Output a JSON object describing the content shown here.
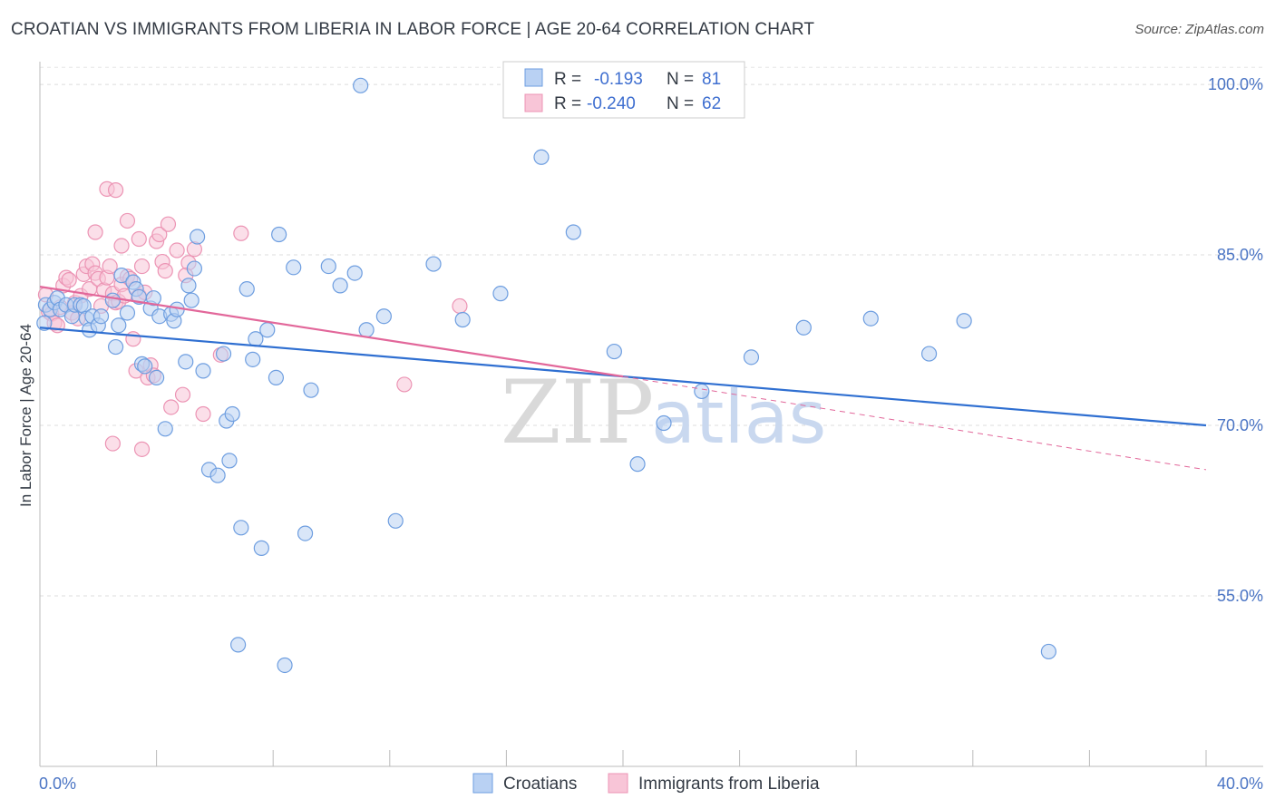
{
  "header": {
    "title": "CROATIAN VS IMMIGRANTS FROM LIBERIA IN LABOR FORCE | AGE 20-64 CORRELATION CHART",
    "source": "Source: ZipAtlas.com"
  },
  "watermark": {
    "zip": "ZIP",
    "atlas": "atlas"
  },
  "chart_data": {
    "type": "scatter",
    "title": "CROATIAN VS IMMIGRANTS FROM LIBERIA IN LABOR FORCE | AGE 20-64 CORRELATION CHART",
    "xlabel": "",
    "ylabel": "In Labor Force | Age 20-64",
    "xlim": [
      0,
      40
    ],
    "ylim": [
      40,
      102
    ],
    "x_tick_labels": {
      "min": "0.0%",
      "max": "40.0%"
    },
    "y_ticks": [
      {
        "value": 55,
        "label": "55.0%"
      },
      {
        "value": 70,
        "label": "70.0%"
      },
      {
        "value": 85,
        "label": "85.0%"
      },
      {
        "value": 100,
        "label": "100.0%"
      }
    ],
    "grid": true,
    "legend_position": "top-center",
    "stats_legend": [
      {
        "r_label": "R =",
        "r_value": "-0.193",
        "n_label": "N =",
        "n_value": "81"
      },
      {
        "r_label": "R =",
        "r_value": "-0.240",
        "n_label": "N =",
        "n_value": "62"
      }
    ],
    "series": [
      {
        "name": "Croatians",
        "color": "#6e9ee0",
        "fill": "#b9d1f3",
        "trend": {
          "x": [
            0,
            40
          ],
          "y": [
            78.6,
            70.0
          ],
          "color": "#2f6fd1"
        },
        "points": [
          [
            0.2,
            80.6
          ],
          [
            0.35,
            80.2
          ],
          [
            0.5,
            80.8
          ],
          [
            0.6,
            81.2
          ],
          [
            0.7,
            80.2
          ],
          [
            0.9,
            80.6
          ],
          [
            1.1,
            79.6
          ],
          [
            1.2,
            80.6
          ],
          [
            1.4,
            80.6
          ],
          [
            1.5,
            80.5
          ],
          [
            1.6,
            79.4
          ],
          [
            1.7,
            78.4
          ],
          [
            1.8,
            79.6
          ],
          [
            2.0,
            78.8
          ],
          [
            2.1,
            79.6
          ],
          [
            2.5,
            81.0
          ],
          [
            2.6,
            76.9
          ],
          [
            2.7,
            78.8
          ],
          [
            2.8,
            83.2
          ],
          [
            3.0,
            79.9
          ],
          [
            3.2,
            82.6
          ],
          [
            3.3,
            82.0
          ],
          [
            3.4,
            81.3
          ],
          [
            3.5,
            75.4
          ],
          [
            3.6,
            75.2
          ],
          [
            3.8,
            80.3
          ],
          [
            3.9,
            81.2
          ],
          [
            4.0,
            74.2
          ],
          [
            4.1,
            79.6
          ],
          [
            4.3,
            69.7
          ],
          [
            4.5,
            79.8
          ],
          [
            4.6,
            79.2
          ],
          [
            4.7,
            80.2
          ],
          [
            5.0,
            75.6
          ],
          [
            5.1,
            82.3
          ],
          [
            5.2,
            81.0
          ],
          [
            5.3,
            83.8
          ],
          [
            5.4,
            86.6
          ],
          [
            5.6,
            74.8
          ],
          [
            5.8,
            66.1
          ],
          [
            6.1,
            65.6
          ],
          [
            6.3,
            76.3
          ],
          [
            6.4,
            70.4
          ],
          [
            6.5,
            66.9
          ],
          [
            6.6,
            71.0
          ],
          [
            6.9,
            61.0
          ],
          [
            7.1,
            82.0
          ],
          [
            7.3,
            75.8
          ],
          [
            7.4,
            77.6
          ],
          [
            7.6,
            59.2
          ],
          [
            7.8,
            78.4
          ],
          [
            8.1,
            74.2
          ],
          [
            8.2,
            86.8
          ],
          [
            8.7,
            83.9
          ],
          [
            9.1,
            60.5
          ],
          [
            9.3,
            73.1
          ],
          [
            9.9,
            84.0
          ],
          [
            10.3,
            82.3
          ],
          [
            10.8,
            83.4
          ],
          [
            11.2,
            78.4
          ],
          [
            11.8,
            79.6
          ],
          [
            12.2,
            61.6
          ],
          [
            13.5,
            84.2
          ],
          [
            14.5,
            79.3
          ],
          [
            15.8,
            81.6
          ],
          [
            17.2,
            93.6
          ],
          [
            18.3,
            87.0
          ],
          [
            19.7,
            76.5
          ],
          [
            20.5,
            66.6
          ],
          [
            21.4,
            70.2
          ],
          [
            22.7,
            73.0
          ],
          [
            24.4,
            76.0
          ],
          [
            26.2,
            78.6
          ],
          [
            28.5,
            79.4
          ],
          [
            30.5,
            76.3
          ],
          [
            31.7,
            79.2
          ],
          [
            34.6,
            50.1
          ],
          [
            11.0,
            99.9
          ],
          [
            6.8,
            50.7
          ],
          [
            8.4,
            48.9
          ],
          [
            0.15,
            79.0
          ]
        ]
      },
      {
        "name": "Immigrants from Liberia",
        "color": "#ec94b4",
        "fill": "#f8c5d7",
        "trend": {
          "x": [
            0,
            20
          ],
          "y": [
            82.2,
            74.3
          ],
          "color": "#e2679a"
        },
        "trend_extension": {
          "x": [
            20,
            40
          ],
          "y": [
            74.3,
            66.1
          ]
        },
        "points": [
          [
            0.2,
            81.5
          ],
          [
            0.3,
            80.0
          ],
          [
            0.4,
            79.8
          ],
          [
            0.5,
            79.0
          ],
          [
            0.6,
            78.8
          ],
          [
            0.7,
            80.4
          ],
          [
            0.8,
            82.3
          ],
          [
            0.9,
            83.0
          ],
          [
            1.0,
            82.8
          ],
          [
            1.1,
            79.9
          ],
          [
            1.2,
            80.8
          ],
          [
            1.3,
            79.4
          ],
          [
            1.4,
            81.4
          ],
          [
            1.5,
            83.3
          ],
          [
            1.6,
            84.0
          ],
          [
            1.7,
            82.0
          ],
          [
            1.8,
            84.2
          ],
          [
            1.9,
            83.4
          ],
          [
            2.0,
            82.9
          ],
          [
            2.1,
            80.5
          ],
          [
            2.2,
            81.9
          ],
          [
            2.3,
            83.0
          ],
          [
            2.4,
            84.0
          ],
          [
            2.5,
            81.6
          ],
          [
            2.6,
            80.8
          ],
          [
            2.7,
            80.9
          ],
          [
            2.8,
            82.4
          ],
          [
            2.9,
            81.4
          ],
          [
            3.0,
            83.1
          ],
          [
            3.1,
            82.9
          ],
          [
            3.2,
            77.6
          ],
          [
            3.3,
            74.8
          ],
          [
            3.4,
            81.4
          ],
          [
            3.5,
            84.0
          ],
          [
            3.6,
            81.7
          ],
          [
            3.7,
            74.2
          ],
          [
            3.8,
            75.3
          ],
          [
            3.9,
            74.4
          ],
          [
            4.0,
            86.2
          ],
          [
            4.1,
            86.8
          ],
          [
            4.2,
            84.4
          ],
          [
            4.3,
            83.6
          ],
          [
            4.5,
            71.6
          ],
          [
            4.7,
            85.4
          ],
          [
            4.9,
            72.7
          ],
          [
            5.1,
            84.3
          ],
          [
            5.3,
            85.5
          ],
          [
            5.6,
            71.0
          ],
          [
            1.9,
            87.0
          ],
          [
            2.3,
            90.8
          ],
          [
            2.6,
            90.7
          ],
          [
            2.8,
            85.8
          ],
          [
            3.0,
            88.0
          ],
          [
            3.4,
            86.4
          ],
          [
            2.5,
            68.4
          ],
          [
            3.5,
            67.9
          ],
          [
            4.4,
            87.7
          ],
          [
            5.0,
            83.2
          ],
          [
            6.2,
            76.2
          ],
          [
            6.9,
            86.9
          ],
          [
            14.4,
            80.5
          ],
          [
            12.5,
            73.6
          ]
        ]
      }
    ]
  }
}
